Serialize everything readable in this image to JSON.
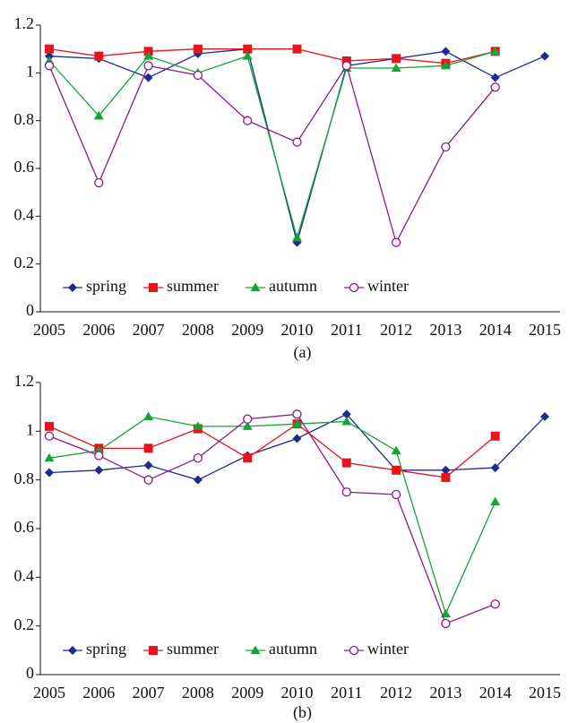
{
  "chart_data": [
    {
      "type": "line",
      "caption": "(a)",
      "categories": [
        "2005",
        "2006",
        "2007",
        "2008",
        "2009",
        "2010",
        "2011",
        "2012",
        "2013",
        "2014",
        "2015"
      ],
      "ylim": [
        0,
        1.2
      ],
      "yticks": [
        0,
        0.2,
        0.4,
        0.6,
        0.8,
        1,
        1.2
      ],
      "series": [
        {
          "name": "spring",
          "color": "#1f2a8c",
          "marker": "diamond",
          "values": [
            1.07,
            1.06,
            0.98,
            1.08,
            1.1,
            0.29,
            1.03,
            1.06,
            1.09,
            0.98,
            1.07
          ]
        },
        {
          "name": "summer",
          "color": "#e8141b",
          "marker": "square",
          "values": [
            1.1,
            1.07,
            1.09,
            1.1,
            1.1,
            1.1,
            1.05,
            1.06,
            1.04,
            1.09,
            null
          ]
        },
        {
          "name": "autumn",
          "color": "#13a538",
          "marker": "triangle",
          "values": [
            1.05,
            0.82,
            1.07,
            1.0,
            1.07,
            0.31,
            1.02,
            1.02,
            1.03,
            1.09,
            null
          ]
        },
        {
          "name": "winter",
          "color": "#8b1a89",
          "marker": "circle",
          "values": [
            1.03,
            0.54,
            1.03,
            0.99,
            0.8,
            0.71,
            1.03,
            0.29,
            0.69,
            0.94,
            null
          ]
        }
      ]
    },
    {
      "type": "line",
      "caption": "(b)",
      "categories": [
        "2005",
        "2006",
        "2007",
        "2008",
        "2009",
        "2010",
        "2011",
        "2012",
        "2013",
        "2014",
        "2015"
      ],
      "ylim": [
        0,
        1.2
      ],
      "yticks": [
        0,
        0.2,
        0.4,
        0.6,
        0.8,
        1,
        1.2
      ],
      "series": [
        {
          "name": "spring",
          "color": "#1f2a8c",
          "marker": "diamond",
          "values": [
            0.83,
            0.84,
            0.86,
            0.8,
            0.9,
            0.97,
            1.07,
            0.84,
            0.84,
            0.85,
            1.06
          ]
        },
        {
          "name": "summer",
          "color": "#e8141b",
          "marker": "square",
          "values": [
            1.02,
            0.93,
            0.93,
            1.01,
            0.89,
            1.03,
            0.87,
            0.84,
            0.81,
            0.98,
            null
          ]
        },
        {
          "name": "autumn",
          "color": "#13a538",
          "marker": "triangle",
          "values": [
            0.89,
            0.92,
            1.06,
            1.02,
            1.02,
            1.03,
            1.04,
            0.92,
            0.25,
            0.71,
            null
          ]
        },
        {
          "name": "winter",
          "color": "#8b1a89",
          "marker": "circle",
          "values": [
            0.98,
            0.9,
            0.8,
            0.89,
            1.05,
            1.07,
            0.75,
            0.74,
            0.21,
            0.29,
            null
          ]
        }
      ]
    }
  ]
}
